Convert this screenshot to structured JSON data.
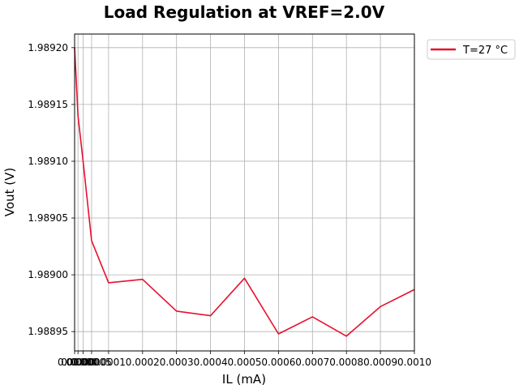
{
  "chart_data": {
    "type": "line",
    "title": "Load Regulation at VREF=2.0V",
    "xlabel": "IL (mA)",
    "ylabel": "Vout (V)",
    "xlim": [
      0.0,
      0.001
    ],
    "ylim": [
      1.988933,
      1.989212
    ],
    "grid": true,
    "legend_position": "outside-top-right",
    "x_ticks": [
      {
        "value": 0.0,
        "label": "0.0000"
      },
      {
        "value": 1e-05,
        "label": "0.0000"
      },
      {
        "value": 2.5e-05,
        "label": "0.0000"
      },
      {
        "value": 5e-05,
        "label": "0.00005"
      },
      {
        "value": 0.0001,
        "label": "0.0001"
      },
      {
        "value": 0.0002,
        "label": "0.0002"
      },
      {
        "value": 0.0003,
        "label": "0.0003"
      },
      {
        "value": 0.0004,
        "label": "0.0004"
      },
      {
        "value": 0.0005,
        "label": "0.0005"
      },
      {
        "value": 0.0006,
        "label": "0.0006"
      },
      {
        "value": 0.0007,
        "label": "0.0007"
      },
      {
        "value": 0.0008,
        "label": "0.0008"
      },
      {
        "value": 0.0009,
        "label": "0.0009"
      },
      {
        "value": 0.001,
        "label": "0.0010"
      }
    ],
    "y_ticks": [
      {
        "value": 1.98895,
        "label": "1.98895"
      },
      {
        "value": 1.989,
        "label": "1.98900"
      },
      {
        "value": 1.98905,
        "label": "1.98905"
      },
      {
        "value": 1.9891,
        "label": "1.98910"
      },
      {
        "value": 1.98915,
        "label": "1.98915"
      },
      {
        "value": 1.9892,
        "label": "1.98920"
      }
    ],
    "series": [
      {
        "name": "T=27 °C",
        "color": "#e8102e",
        "x": [
          0.0,
          1e-05,
          2.5e-05,
          5e-05,
          0.0001,
          0.0002,
          0.0003,
          0.0004,
          0.0005,
          0.0006,
          0.0007,
          0.0008,
          0.0009,
          0.001
        ],
        "y": [
          1.9892,
          1.98914,
          1.9891,
          1.98903,
          1.988993,
          1.988996,
          1.988968,
          1.988964,
          1.988997,
          1.988948,
          1.988963,
          1.988946,
          1.988972,
          1.988987
        ]
      }
    ]
  }
}
